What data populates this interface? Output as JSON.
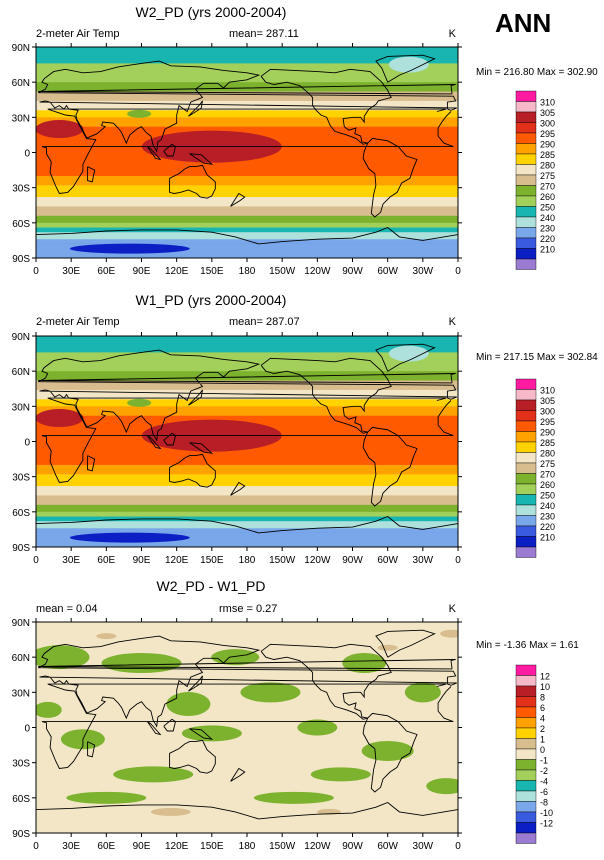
{
  "season_label": "ANN",
  "x_ticks": [
    "0",
    "30E",
    "60E",
    "90E",
    "120E",
    "150E",
    "180",
    "150W",
    "120W",
    "90W",
    "60W",
    "30W",
    "0"
  ],
  "y_ticks": [
    "90N",
    "60N",
    "30N",
    "0",
    "30S",
    "60S",
    "90S"
  ],
  "colors": {
    "temp_levels": [
      "#9a7bd1",
      "#0b1fc4",
      "#3a5be0",
      "#7aa7ea",
      "#aee0dc",
      "#19b5b0",
      "#a3d05a",
      "#7db22e",
      "#d8bd8f",
      "#f2e6c6",
      "#ffd200",
      "#ffa200",
      "#ff5a00",
      "#e2301a",
      "#b81e25",
      "#f7b8c8",
      "#ff1aa2"
    ],
    "diff_levels": [
      "#9a7bd1",
      "#0b1fc4",
      "#3a5be0",
      "#7aa7ea",
      "#aee0dc",
      "#19b5b0",
      "#a3d05a",
      "#7db22e",
      "#f2e6c6",
      "#d8bd8f",
      "#ffd200",
      "#ffa200",
      "#ff5a00",
      "#e2301a",
      "#b81e25",
      "#f7b8c8",
      "#ff1aa2"
    ],
    "coast": "#000000"
  },
  "chart_data": [
    {
      "type": "heatmap",
      "title": "W2_PD (yrs 2000-2004)",
      "variable": "2-meter Air Temp",
      "mean_label": "mean= 287.11",
      "units": "K",
      "stats_label": "Min = 216.80 Max = 302.90",
      "x_range": [
        0,
        360
      ],
      "y_range": [
        -90,
        90
      ],
      "min": 216.8,
      "max": 302.9,
      "legend_levels": [
        "310",
        "305",
        "300",
        "295",
        "290",
        "285",
        "280",
        "275",
        "270",
        "260",
        "250",
        "240",
        "230",
        "220",
        "210"
      ],
      "zonal_profile": {
        "lat": [
          -90,
          -80,
          -70,
          -60,
          -50,
          -40,
          -30,
          -20,
          -10,
          0,
          10,
          20,
          30,
          40,
          50,
          60,
          70,
          80,
          90
        ],
        "value": [
          225,
          228,
          246,
          271,
          278,
          284,
          289,
          295,
          298,
          299,
          298,
          296,
          290,
          282,
          276,
          270,
          264,
          258,
          254
        ]
      }
    },
    {
      "type": "heatmap",
      "title": "W1_PD (yrs 2000-2004)",
      "variable": "2-meter Air Temp",
      "mean_label": "mean= 287.07",
      "units": "K",
      "stats_label": "Min = 217.15 Max = 302.84",
      "x_range": [
        0,
        360
      ],
      "y_range": [
        -90,
        90
      ],
      "min": 217.15,
      "max": 302.84,
      "legend_levels": [
        "310",
        "305",
        "300",
        "295",
        "290",
        "285",
        "280",
        "275",
        "270",
        "260",
        "250",
        "240",
        "230",
        "220",
        "210"
      ],
      "zonal_profile": {
        "lat": [
          -90,
          -80,
          -70,
          -60,
          -50,
          -40,
          -30,
          -20,
          -10,
          0,
          10,
          20,
          30,
          40,
          50,
          60,
          70,
          80,
          90
        ],
        "value": [
          225,
          228,
          246,
          271,
          278,
          284,
          289,
          295,
          298,
          299,
          298,
          296,
          290,
          282,
          276,
          270,
          264,
          258,
          254
        ]
      }
    },
    {
      "type": "heatmap",
      "title": "W2_PD - W1_PD",
      "variable": "",
      "mean_label": "mean =   0.04",
      "rmse_label": "rmse =   0.27",
      "units": "K",
      "stats_label": "Min = -1.36 Max =  1.61",
      "x_range": [
        0,
        360
      ],
      "y_range": [
        -90,
        90
      ],
      "min": -1.36,
      "max": 1.61,
      "legend_levels": [
        "12",
        "10",
        "8",
        "6",
        "4",
        "2",
        "1",
        "0",
        "-1",
        "-2",
        "-4",
        "-6",
        "-8",
        "-10",
        "-12"
      ]
    }
  ]
}
